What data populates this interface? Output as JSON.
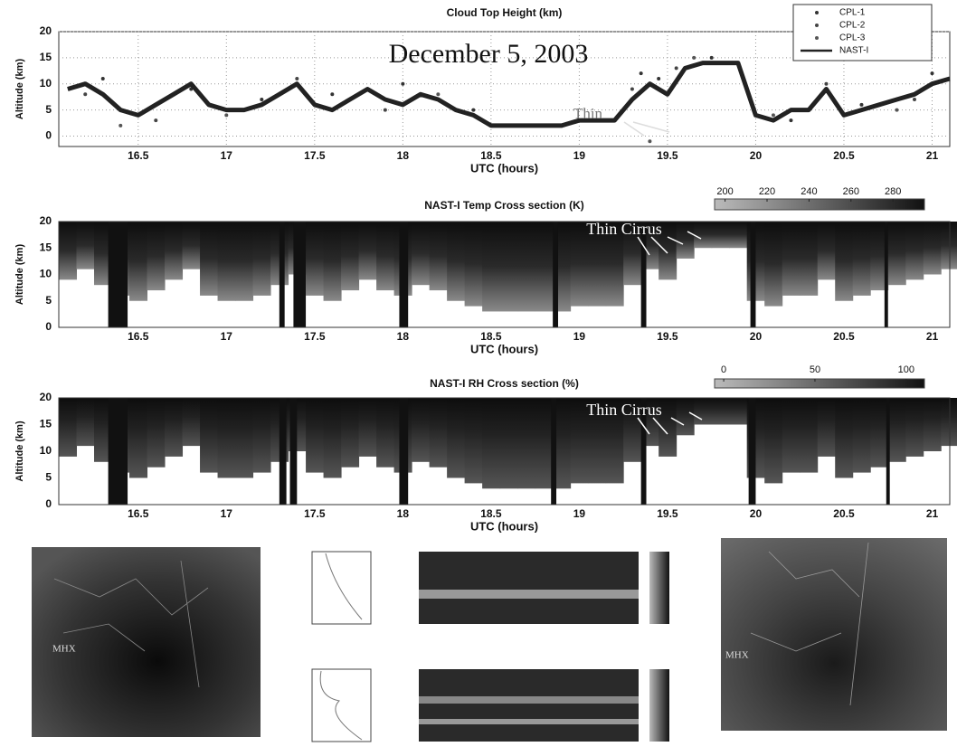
{
  "chart_data": [
    {
      "type": "line",
      "title": "Cloud Top Height (km)",
      "xlabel": "UTC (hours)",
      "ylabel": "Altitude (km)",
      "xlim": [
        16.05,
        21.1
      ],
      "ylim": [
        -2,
        20
      ],
      "xticks": [
        16.5,
        17,
        17.5,
        18,
        18.5,
        19,
        19.5,
        20,
        20.5,
        21
      ],
      "yticks": [
        0,
        5,
        10,
        15,
        20
      ],
      "grid": true,
      "annotations": [
        "December 5, 2003",
        "Thin"
      ],
      "series": [
        {
          "name": "CPL-1",
          "color": "#333333",
          "marker": "dot",
          "x": [
            16.3,
            16.8,
            17.2,
            17.6,
            18.0,
            18.4,
            19.35,
            19.45,
            19.75,
            20.2,
            20.6,
            21.0
          ],
          "values": [
            11,
            9,
            7,
            8,
            10,
            5,
            12,
            11,
            15,
            3,
            6,
            12
          ]
        },
        {
          "name": "CPL-2",
          "color": "#444444",
          "marker": "dot",
          "x": [
            16.2,
            16.6,
            17.4,
            17.9,
            18.6,
            19.3,
            19.55,
            19.85,
            20.4,
            20.9
          ],
          "values": [
            8,
            3,
            11,
            5,
            2,
            9,
            13,
            14,
            10,
            7
          ]
        },
        {
          "name": "CPL-3",
          "color": "#555555",
          "marker": "dot",
          "x": [
            16.4,
            17.0,
            17.7,
            18.2,
            19.0,
            19.4,
            19.65,
            20.1,
            20.8
          ],
          "values": [
            2,
            4,
            7,
            8,
            3,
            -1,
            15,
            4,
            5
          ]
        },
        {
          "name": "NAST-I",
          "color": "#222222",
          "marker": "line",
          "x": [
            16.1,
            16.2,
            16.3,
            16.4,
            16.5,
            16.6,
            16.7,
            16.8,
            16.9,
            17.0,
            17.1,
            17.2,
            17.3,
            17.4,
            17.5,
            17.6,
            17.7,
            17.8,
            17.9,
            18.0,
            18.1,
            18.2,
            18.3,
            18.4,
            18.5,
            18.6,
            18.7,
            18.8,
            18.9,
            19.0,
            19.1,
            19.2,
            19.3,
            19.4,
            19.5,
            19.6,
            19.7,
            19.8,
            19.9,
            20.0,
            20.1,
            20.2,
            20.3,
            20.4,
            20.5,
            20.6,
            20.7,
            20.8,
            20.9,
            21.0,
            21.1
          ],
          "values": [
            9,
            10,
            8,
            5,
            4,
            6,
            8,
            10,
            6,
            5,
            5,
            6,
            8,
            10,
            6,
            5,
            7,
            9,
            7,
            6,
            8,
            7,
            5,
            4,
            2,
            2,
            2,
            2,
            2,
            3,
            3,
            3,
            7,
            10,
            8,
            13,
            14,
            14,
            14,
            4,
            3,
            5,
            5,
            9,
            4,
            5,
            6,
            7,
            8,
            10,
            11
          ]
        }
      ]
    },
    {
      "type": "cross_section",
      "title": "NAST-I Temp Cross section (K)",
      "xlabel": "UTC (hours)",
      "ylabel": "Altitude (km)",
      "xlim": [
        16.05,
        21.1
      ],
      "ylim": [
        0,
        20
      ],
      "xticks": [
        16.5,
        17,
        17.5,
        18,
        18.5,
        19,
        19.5,
        20,
        20.5,
        21
      ],
      "yticks": [
        0,
        5,
        10,
        15,
        20
      ],
      "annotations": [
        "Thin Cirrus"
      ],
      "colorbar": {
        "lim": [
          195,
          295
        ],
        "ticks": [
          200,
          220,
          240,
          260,
          280
        ]
      },
      "x": [
        16.1,
        16.2,
        16.3,
        16.4,
        16.5,
        16.6,
        16.7,
        16.8,
        16.9,
        17.0,
        17.1,
        17.2,
        17.3,
        17.4,
        17.5,
        17.6,
        17.7,
        17.8,
        17.9,
        18.0,
        18.1,
        18.2,
        18.3,
        18.4,
        18.5,
        18.6,
        18.7,
        18.8,
        18.9,
        19.0,
        19.1,
        19.2,
        19.3,
        19.4,
        19.5,
        19.6,
        19.7,
        19.8,
        19.9,
        20.0,
        20.1,
        20.2,
        20.3,
        20.4,
        20.5,
        20.6,
        20.7,
        20.8,
        20.9,
        21.0,
        21.1
      ],
      "cloud_top": [
        9,
        11,
        8,
        6,
        5,
        7,
        9,
        11,
        6,
        5,
        5,
        6,
        8,
        10,
        6,
        5,
        7,
        9,
        7,
        6,
        8,
        7,
        5,
        4,
        3,
        3,
        3,
        3,
        3,
        4,
        4,
        4,
        8,
        11,
        9,
        13,
        15,
        15,
        15,
        5,
        4,
        6,
        6,
        9,
        5,
        6,
        7,
        8,
        9,
        10,
        11
      ],
      "gaps": [
        [
          16.33,
          16.44
        ],
        [
          17.3,
          17.33
        ],
        [
          17.38,
          17.45
        ],
        [
          17.98,
          18.03
        ],
        [
          18.85,
          18.88
        ],
        [
          19.35,
          19.38
        ],
        [
          19.97,
          20.0
        ],
        [
          20.73,
          20.75
        ]
      ]
    },
    {
      "type": "cross_section",
      "title": "NAST-I RH Cross section (%)",
      "xlabel": "UTC (hours)",
      "ylabel": "Altitude (km)",
      "xlim": [
        16.05,
        21.1
      ],
      "ylim": [
        0,
        20
      ],
      "xticks": [
        16.5,
        17,
        17.5,
        18,
        18.5,
        19,
        19.5,
        20,
        20.5,
        21
      ],
      "yticks": [
        0,
        5,
        10,
        15,
        20
      ],
      "annotations": [
        "Thin Cirrus"
      ],
      "colorbar": {
        "lim": [
          -5,
          110
        ],
        "ticks": [
          0,
          50,
          100
        ]
      },
      "x": [
        16.1,
        16.2,
        16.3,
        16.4,
        16.5,
        16.6,
        16.7,
        16.8,
        16.9,
        17.0,
        17.1,
        17.2,
        17.3,
        17.4,
        17.5,
        17.6,
        17.7,
        17.8,
        17.9,
        18.0,
        18.1,
        18.2,
        18.3,
        18.4,
        18.5,
        18.6,
        18.7,
        18.8,
        18.9,
        19.0,
        19.1,
        19.2,
        19.3,
        19.4,
        19.5,
        19.6,
        19.7,
        19.8,
        19.9,
        20.0,
        20.1,
        20.2,
        20.3,
        20.4,
        20.5,
        20.6,
        20.7,
        20.8,
        20.9,
        21.0,
        21.1
      ],
      "cloud_top": [
        9,
        11,
        8,
        6,
        5,
        7,
        9,
        11,
        6,
        5,
        5,
        6,
        8,
        10,
        6,
        5,
        7,
        9,
        7,
        6,
        8,
        7,
        5,
        4,
        3,
        3,
        3,
        3,
        3,
        4,
        4,
        4,
        8,
        11,
        9,
        13,
        15,
        15,
        15,
        5,
        4,
        6,
        6,
        9,
        5,
        6,
        7,
        8,
        9,
        10,
        11
      ],
      "gaps": [
        [
          16.33,
          16.44
        ],
        [
          17.3,
          17.34
        ],
        [
          17.36,
          17.4
        ],
        [
          17.98,
          18.03
        ],
        [
          18.84,
          18.87
        ],
        [
          19.35,
          19.38
        ],
        [
          19.96,
          20.0
        ],
        [
          20.74,
          20.76
        ]
      ]
    }
  ],
  "images": [
    {
      "label": "MHX"
    },
    {
      "label": "MHX"
    }
  ]
}
